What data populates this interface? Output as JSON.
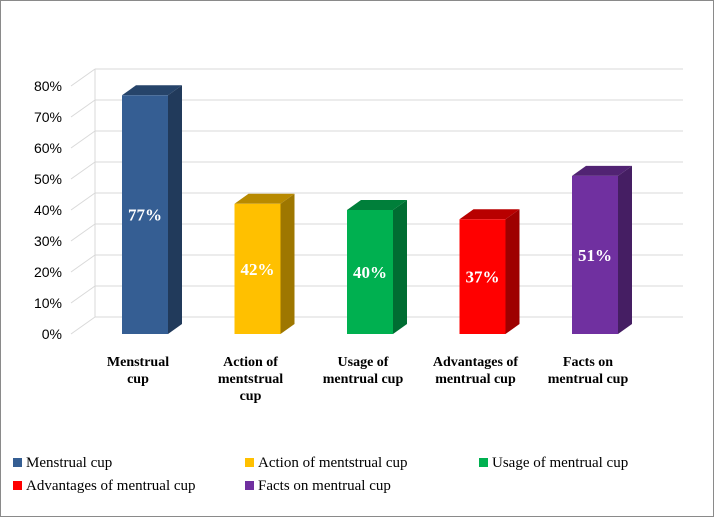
{
  "chart_data": {
    "type": "bar",
    "three_d": true,
    "title": "",
    "xlabel": "",
    "ylabel": "",
    "ylim": [
      0,
      80
    ],
    "y_ticks": [
      "0%",
      "10%",
      "20%",
      "30%",
      "40%",
      "50%",
      "60%",
      "70%",
      "80%"
    ],
    "grid": true,
    "legend_position": "bottom",
    "categories": [
      "Menstrual cup",
      "Action of mentstrual cup",
      "Usage of mentrual cup",
      "Advantages of mentrual cup",
      "Facts on mentrual cup"
    ],
    "category_label_lines": [
      [
        "Menstrual",
        "cup"
      ],
      [
        "Action of",
        "mentstrual",
        "cup"
      ],
      [
        "Usage of",
        "mentrual cup"
      ],
      [
        "Advantages of",
        "mentrual cup"
      ],
      [
        "Facts on",
        "mentrual cup"
      ]
    ],
    "values": [
      77,
      42,
      40,
      37,
      51
    ],
    "data_labels": [
      "77%",
      "42%",
      "40%",
      "37%",
      "51%"
    ],
    "colors": [
      "#355E93",
      "#FFC000",
      "#00B050",
      "#FF0000",
      "#7030A0"
    ],
    "legend": [
      "Menstrual cup",
      "Action of mentstrual cup",
      "Usage of mentrual cup",
      "Advantages of mentrual cup",
      "Facts on mentrual cup"
    ]
  }
}
